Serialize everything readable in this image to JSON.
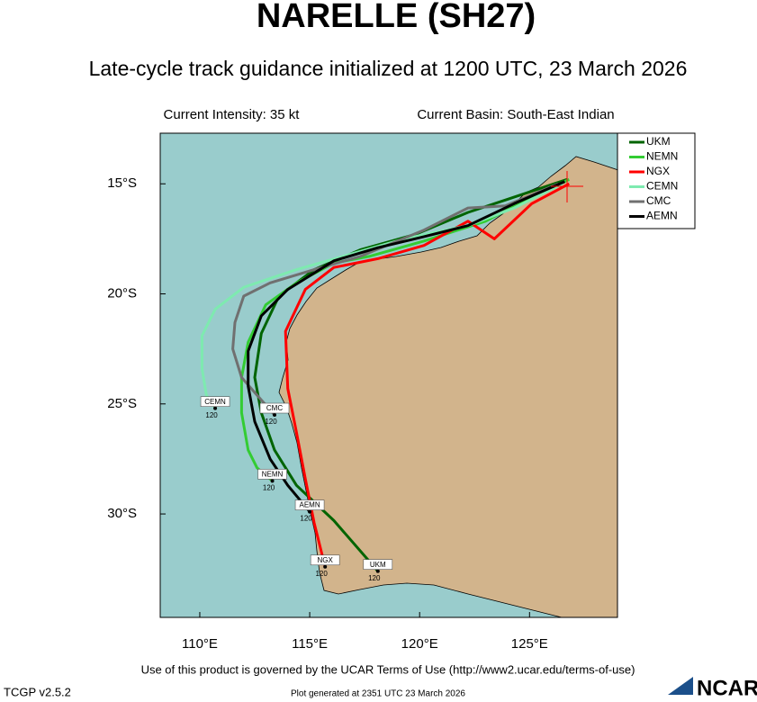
{
  "chart_data": {
    "type": "track",
    "title": "NARELLE (SH27)",
    "subtitle": "Late-cycle track guidance initialized at 1200 UTC, 23 March 2026",
    "annotations": [
      "Current Intensity: 35 kt",
      "Current Basin: South-East Indian"
    ],
    "footer": "Use of this product is governed by the UCAR Terms of Use (http://www2.ucar.edu/terms-of-use)",
    "version": "TCGP v2.5.2",
    "generated": "Plot generated at 2351 UTC  23 March 2026",
    "logo": "NCAR",
    "xlim": [
      108.2,
      129.0
    ],
    "ylim": [
      -34.7,
      -12.7
    ],
    "xticks": [
      {
        "value": 110,
        "label": "110°E"
      },
      {
        "value": 115,
        "label": "115°E"
      },
      {
        "value": 120,
        "label": "120°E"
      },
      {
        "value": 125,
        "label": "125°E"
      }
    ],
    "yticks": [
      {
        "value": -15,
        "label": "15°S"
      },
      {
        "value": -20,
        "label": "20°S"
      },
      {
        "value": -25,
        "label": "25°S"
      },
      {
        "value": -30,
        "label": "30°S"
      }
    ],
    "series": [
      {
        "name": "UKM",
        "color": "#006400",
        "end_label": "120",
        "x": [
          126.7,
          124.0,
          122.2,
          119.8,
          117.3,
          115.2,
          113.6,
          112.8,
          112.5,
          112.8,
          113.4,
          114.4,
          116.1,
          118.1
        ],
        "values": [
          -14.8,
          -15.7,
          -16.3,
          -17.3,
          -18.0,
          -18.9,
          -20.1,
          -21.8,
          -23.8,
          -25.4,
          -27.1,
          -28.7,
          -30.3,
          -32.6
        ]
      },
      {
        "name": "NEMN",
        "color": "#33cc33",
        "end_label": "120",
        "x": [
          126.8,
          125.1,
          123.0,
          120.2,
          117.7,
          116.1,
          114.4,
          113.0,
          112.2,
          111.9,
          111.9,
          112.2,
          112.6,
          113.3
        ],
        "values": [
          -14.8,
          -15.6,
          -16.7,
          -17.6,
          -18.3,
          -18.6,
          -19.5,
          -20.5,
          -22.2,
          -23.8,
          -25.4,
          -27.1,
          -27.9,
          -28.5
        ]
      },
      {
        "name": "NGX",
        "color": "#ff0000",
        "end_label": "120",
        "x": [
          126.8,
          125.1,
          123.4,
          122.2,
          120.2,
          118.1,
          116.1,
          114.8,
          113.9,
          114.0,
          114.4,
          114.8,
          115.2,
          115.7
        ],
        "values": [
          -15.0,
          -15.9,
          -17.5,
          -16.7,
          -17.8,
          -18.4,
          -18.8,
          -19.8,
          -21.7,
          -24.3,
          -26.3,
          -28.4,
          -30.4,
          -32.4
        ]
      },
      {
        "name": "CEMN",
        "color": "#7eeab0",
        "end_label": "120",
        "x": [
          126.5,
          124.3,
          122.2,
          119.3,
          116.5,
          114.4,
          112.0,
          110.7,
          110.1,
          110.1,
          110.3,
          110.7
        ],
        "values": [
          -15.0,
          -16.1,
          -16.9,
          -17.5,
          -18.3,
          -18.9,
          -19.7,
          -20.7,
          -21.9,
          -23.4,
          -24.6,
          -25.2
        ]
      },
      {
        "name": "CMC",
        "color": "#707070",
        "end_label": "120",
        "x": [
          126.3,
          123.9,
          122.2,
          120.2,
          117.3,
          115.2,
          113.2,
          112.0,
          111.6,
          111.5,
          111.9,
          112.6,
          113.4
        ],
        "values": [
          -15.0,
          -16.0,
          -16.1,
          -17.1,
          -18.3,
          -18.9,
          -19.5,
          -20.1,
          -21.3,
          -22.5,
          -23.8,
          -24.6,
          -25.5
        ]
      },
      {
        "name": "AEMN",
        "color": "#000000",
        "end_label": "120",
        "x": [
          126.6,
          124.3,
          122.2,
          120.2,
          118.1,
          116.1,
          114.0,
          112.8,
          112.2,
          112.2,
          112.5,
          113.2,
          114.0,
          115.0
        ],
        "values": [
          -14.9,
          -15.9,
          -16.9,
          -17.4,
          -17.9,
          -18.5,
          -19.8,
          -21.0,
          -22.6,
          -24.2,
          -25.8,
          -27.5,
          -28.7,
          -29.9
        ]
      }
    ]
  }
}
